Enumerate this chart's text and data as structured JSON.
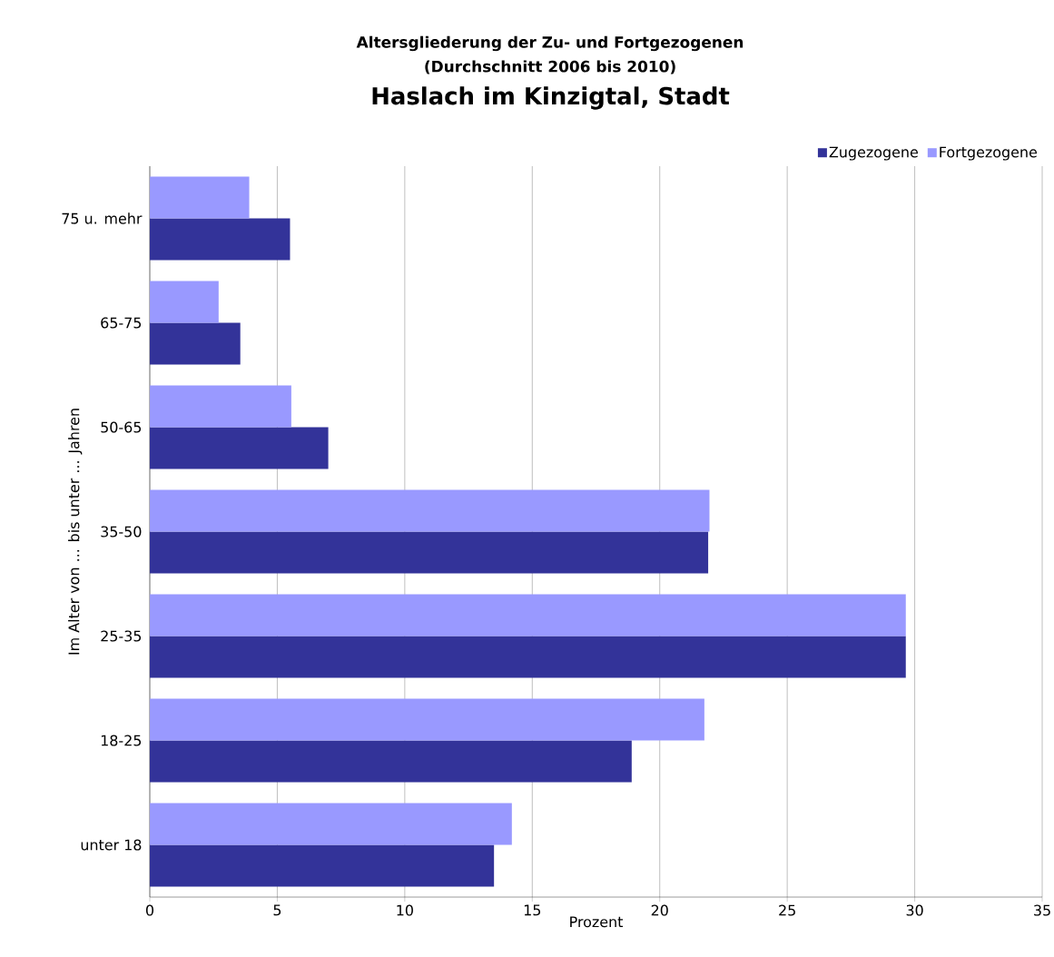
{
  "chart_data": {
    "type": "bar",
    "orientation": "horizontal",
    "title": "Altersgliederung der Zu- und Fortgezogenen",
    "subtitle": "(Durchschnitt 2006 bis 2010)",
    "annotations": [
      "Haslach im Kinzigtal, Stadt"
    ],
    "xlabel": "Prozent",
    "ylabel": "Im Alter von ... bis unter ... Jahren",
    "categories": [
      "75 u. mehr",
      "65-75",
      "50-65",
      "35-50",
      "25-35",
      "18-25",
      "unter 18"
    ],
    "series": [
      {
        "name": "Zugezogene",
        "color": "#333399",
        "values": [
          5.5,
          3.55,
          7.0,
          21.9,
          29.65,
          18.9,
          13.5
        ]
      },
      {
        "name": "Fortgezogene",
        "color": "#9999ff",
        "values": [
          3.9,
          2.7,
          5.55,
          21.95,
          29.65,
          21.75,
          14.2
        ]
      }
    ],
    "xlim": [
      0,
      35
    ],
    "xticks": [
      0,
      5,
      10,
      15,
      20,
      25,
      30,
      35
    ],
    "grid": "x",
    "legend": "top right"
  }
}
